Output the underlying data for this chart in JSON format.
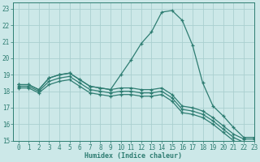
{
  "xlabel": "Humidex (Indice chaleur)",
  "xlim": [
    -0.5,
    23
  ],
  "ylim": [
    15,
    23.4
  ],
  "xticks": [
    0,
    1,
    2,
    3,
    4,
    5,
    6,
    7,
    8,
    9,
    10,
    11,
    12,
    13,
    14,
    15,
    16,
    17,
    18,
    19,
    20,
    21,
    22,
    23
  ],
  "yticks": [
    15,
    16,
    17,
    18,
    19,
    20,
    21,
    22,
    23
  ],
  "bg_color": "#cce8e8",
  "line_color": "#2e7d72",
  "grid_color": "#aacfcf",
  "line1_y": [
    18.4,
    18.4,
    18.1,
    18.8,
    19.0,
    19.1,
    18.7,
    18.3,
    18.2,
    18.1,
    19.0,
    19.9,
    20.9,
    21.6,
    22.8,
    22.9,
    22.3,
    20.8,
    18.5,
    17.1,
    16.5,
    15.8,
    15.2,
    15.2
  ],
  "line2_y": [
    18.4,
    18.4,
    18.1,
    18.8,
    19.0,
    19.1,
    18.7,
    18.3,
    18.2,
    18.1,
    18.2,
    18.2,
    18.1,
    18.1,
    18.2,
    17.8,
    17.1,
    17.0,
    16.8,
    16.4,
    15.9,
    15.4,
    15.1,
    15.1
  ],
  "line3_y": [
    18.3,
    18.3,
    18.0,
    18.6,
    18.8,
    18.9,
    18.5,
    18.1,
    18.0,
    17.9,
    18.0,
    18.0,
    17.9,
    17.9,
    18.0,
    17.6,
    16.9,
    16.8,
    16.6,
    16.2,
    15.7,
    15.2,
    14.9,
    14.9
  ],
  "line4_y": [
    18.2,
    18.2,
    17.9,
    18.4,
    18.6,
    18.7,
    18.3,
    17.9,
    17.8,
    17.7,
    17.8,
    17.8,
    17.7,
    17.7,
    17.8,
    17.4,
    16.7,
    16.6,
    16.4,
    16.0,
    15.5,
    15.0,
    14.7,
    14.7
  ]
}
